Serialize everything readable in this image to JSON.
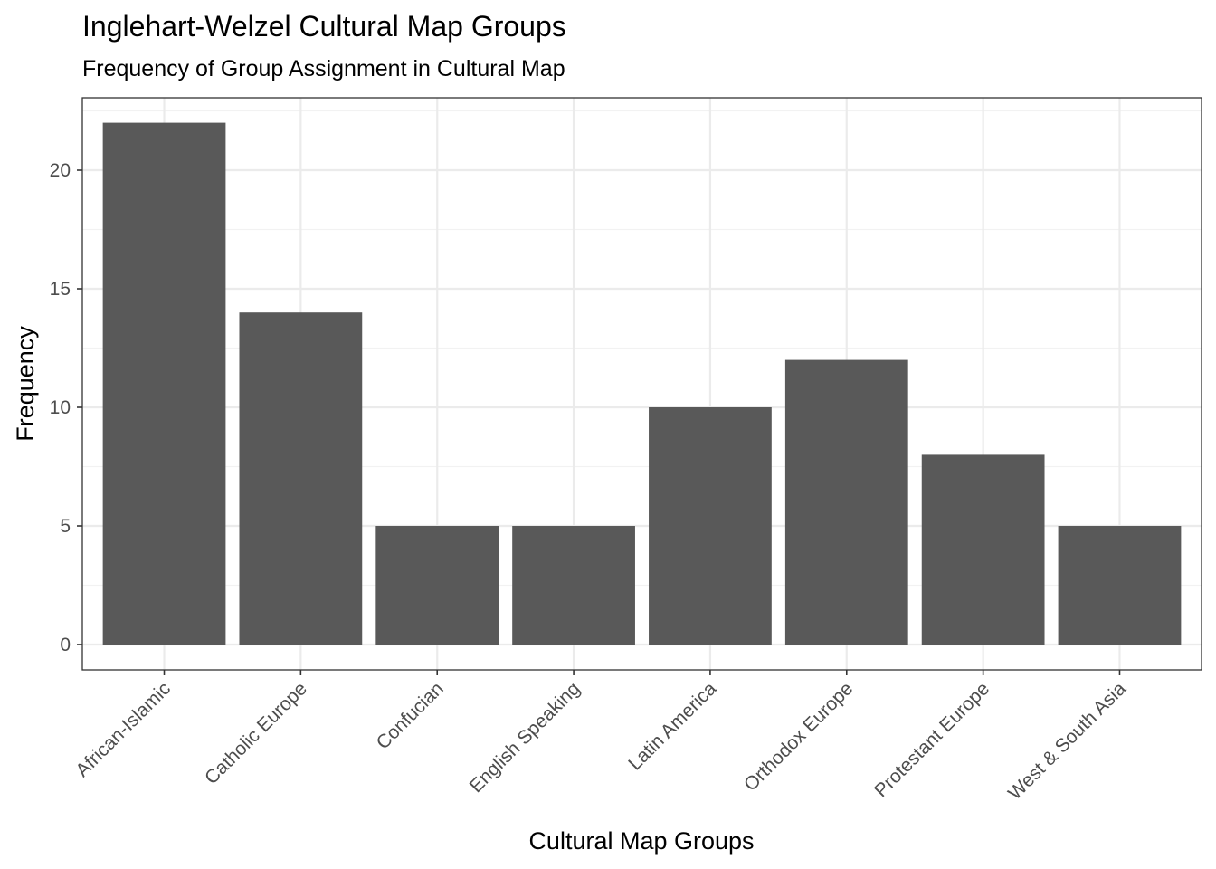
{
  "chart_data": {
    "type": "bar",
    "title": "Inglehart-Welzel Cultural Map Groups",
    "subtitle": "Frequency of Group Assignment in Cultural Map",
    "xlabel": "Cultural Map Groups",
    "ylabel": "Frequency",
    "categories": [
      "African-Islamic",
      "Catholic Europe",
      "Confucian",
      "English Speaking",
      "Latin America",
      "Orthodox Europe",
      "Protestant Europe",
      "West & South Asia"
    ],
    "values": [
      22,
      14,
      5,
      5,
      10,
      12,
      8,
      5
    ],
    "ylim": [
      0,
      22
    ],
    "yticks": [
      "0",
      "5",
      "10",
      "15",
      "20"
    ],
    "grid": true,
    "legend": "none",
    "bar_color": "#595959",
    "grid_major_color": "#ebebeb",
    "grid_minor_color": "#f2f2f2",
    "panel_border_color": "#333333"
  }
}
